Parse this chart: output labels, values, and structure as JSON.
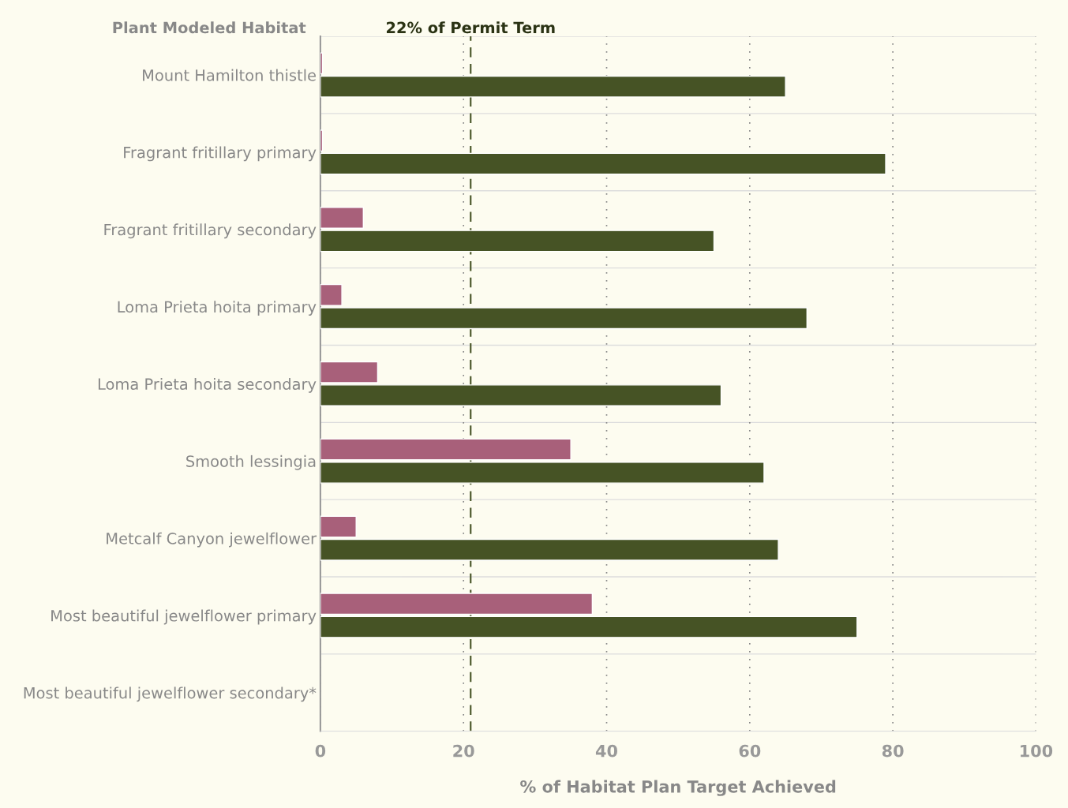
{
  "chart_data": {
    "type": "bar",
    "orientation": "horizontal",
    "ylabel": "Plant Modeled Habitat",
    "xlabel": "% of Habitat Plan Target Achieved",
    "categories": [
      "Mount Hamilton thistle",
      "Fragrant fritillary primary",
      "Fragrant fritillary secondary",
      "Loma Prieta hoita primary",
      "Loma Prieta hoita secondary",
      "Smooth lessingia",
      "Metcalf Canyon jewelflower",
      "Most beautiful jewelflower primary",
      "Most beautiful jewelflower secondary*"
    ],
    "series": [
      {
        "color": "#a8607a",
        "values": [
          0.3,
          0.3,
          6,
          3,
          8,
          35,
          5,
          38,
          null
        ]
      },
      {
        "color": "#465325",
        "values": [
          65,
          79,
          55,
          68,
          56,
          62,
          64,
          75,
          null
        ]
      }
    ],
    "xlim": [
      0,
      100
    ],
    "xticks": [
      0,
      20,
      40,
      60,
      80,
      100
    ],
    "ref_lines": [
      {
        "axis": "x",
        "value": 21,
        "label": "22% of Permit Term",
        "color": "#465325",
        "line_style": "dashed"
      }
    ],
    "grid": true
  }
}
